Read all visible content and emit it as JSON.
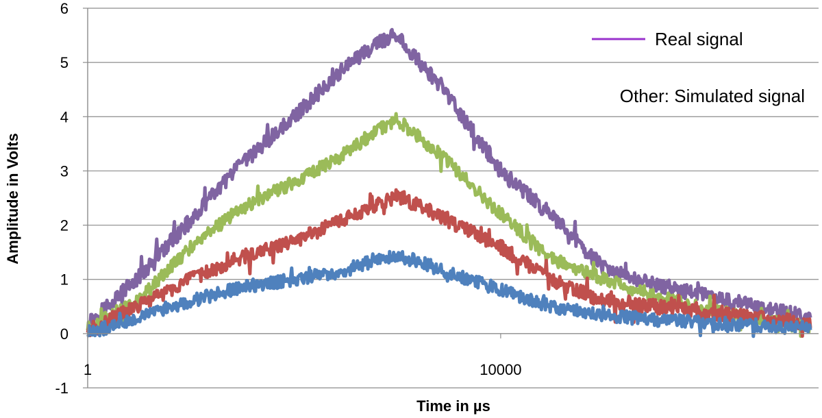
{
  "chart_data": {
    "type": "line",
    "title": "",
    "xlabel": "Time in µs",
    "ylabel": "Amplitude in Volts",
    "x_scale": "log",
    "xlim": [
      1,
      12000000
    ],
    "ylim": [
      -1,
      6
    ],
    "y_ticks": [
      "-1",
      "0",
      "1",
      "2",
      "3",
      "4",
      "5",
      "6"
    ],
    "x_ticks": [
      {
        "value": 1,
        "label": "1"
      },
      {
        "value": 10000,
        "label": "10000"
      }
    ],
    "grid": true,
    "legend": {
      "position": "top-right",
      "entries": [
        {
          "label": "Real signal",
          "color": "#9932CC"
        }
      ],
      "note": "Other: Simulated signal"
    },
    "series": [
      {
        "color": "#8064A2",
        "points": [
          [
            1,
            0.2
          ],
          [
            3,
            1.0
          ],
          [
            10,
            2.1
          ],
          [
            30,
            3.1
          ],
          [
            100,
            4.0
          ],
          [
            300,
            4.9
          ],
          [
            700,
            5.4
          ],
          [
            1000,
            5.5
          ],
          [
            3000,
            4.4
          ],
          [
            10000,
            3.0
          ],
          [
            30000,
            2.2
          ],
          [
            100000,
            1.2
          ],
          [
            300000,
            0.9
          ],
          [
            1000000,
            0.7
          ],
          [
            3000000,
            0.5
          ],
          [
            10000000,
            0.3
          ]
        ],
        "noise": 0.14
      },
      {
        "color": "#9BBB59",
        "points": [
          [
            1,
            0.1
          ],
          [
            3,
            0.6
          ],
          [
            10,
            1.6
          ],
          [
            30,
            2.3
          ],
          [
            100,
            2.8
          ],
          [
            300,
            3.3
          ],
          [
            700,
            3.8
          ],
          [
            1000,
            3.95
          ],
          [
            3000,
            3.2
          ],
          [
            10000,
            2.2
          ],
          [
            30000,
            1.4
          ],
          [
            100000,
            1.0
          ],
          [
            300000,
            0.7
          ],
          [
            1000000,
            0.45
          ],
          [
            3000000,
            0.25
          ],
          [
            10000000,
            0.12
          ]
        ],
        "noise": 0.12
      },
      {
        "color": "#C0504D",
        "points": [
          [
            1,
            0.05
          ],
          [
            3,
            0.5
          ],
          [
            10,
            1.0
          ],
          [
            30,
            1.4
          ],
          [
            100,
            1.7
          ],
          [
            300,
            2.1
          ],
          [
            700,
            2.4
          ],
          [
            1000,
            2.55
          ],
          [
            3000,
            2.1
          ],
          [
            10000,
            1.6
          ],
          [
            30000,
            1.0
          ],
          [
            100000,
            0.6
          ],
          [
            300000,
            0.5
          ],
          [
            1000000,
            0.4
          ],
          [
            3000000,
            0.3
          ],
          [
            10000000,
            0.2
          ]
        ],
        "noise": 0.13
      },
      {
        "color": "#4F81BD",
        "points": [
          [
            1,
            0.0
          ],
          [
            3,
            0.3
          ],
          [
            10,
            0.6
          ],
          [
            30,
            0.85
          ],
          [
            100,
            1.0
          ],
          [
            300,
            1.15
          ],
          [
            700,
            1.4
          ],
          [
            1000,
            1.45
          ],
          [
            3000,
            1.15
          ],
          [
            10000,
            0.8
          ],
          [
            30000,
            0.5
          ],
          [
            100000,
            0.35
          ],
          [
            300000,
            0.25
          ],
          [
            1000000,
            0.2
          ],
          [
            3000000,
            0.15
          ],
          [
            10000000,
            0.1
          ]
        ],
        "noise": 0.12
      }
    ]
  }
}
